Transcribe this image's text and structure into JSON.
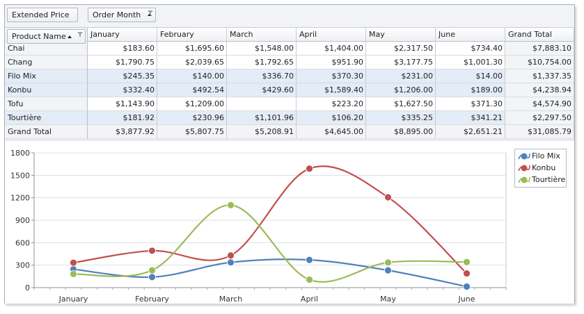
{
  "header": {
    "data_field": "Extended Price",
    "column_field": "Order Month",
    "row_field": "Product Name"
  },
  "columns": [
    "January",
    "February",
    "March",
    "April",
    "May",
    "June",
    "Grand Total"
  ],
  "rows": [
    {
      "name": "Chai",
      "values": [
        "$183.60",
        "$1,695.60",
        "$1,548.00",
        "$1,404.00",
        "$2,317.50",
        "$734.40",
        "$7,883.10"
      ],
      "highlighted": false
    },
    {
      "name": "Chang",
      "values": [
        "$1,790.75",
        "$2,039.65",
        "$1,792.65",
        "$951.90",
        "$3,177.75",
        "$1,001.30",
        "$10,754.00"
      ],
      "highlighted": false
    },
    {
      "name": "Filo Mix",
      "values": [
        "$245.35",
        "$140.00",
        "$336.70",
        "$370.30",
        "$231.00",
        "$14.00",
        "$1,337.35"
      ],
      "highlighted": true
    },
    {
      "name": "Konbu",
      "values": [
        "$332.40",
        "$492.54",
        "$429.60",
        "$1,589.40",
        "$1,206.00",
        "$189.00",
        "$4,238.94"
      ],
      "highlighted": true
    },
    {
      "name": "Tofu",
      "values": [
        "$1,143.90",
        "$1,209.00",
        "",
        "$223.20",
        "$1,627.50",
        "$371.30",
        "$4,574.90"
      ],
      "highlighted": false
    },
    {
      "name": "Tourtière",
      "values": [
        "$181.92",
        "$230.96",
        "$1,101.96",
        "$106.20",
        "$335.25",
        "$341.21",
        "$2,297.50"
      ],
      "highlighted": true
    }
  ],
  "grand_total": {
    "name": "Grand Total",
    "values": [
      "$3,877.92",
      "$5,807.75",
      "$5,208.91",
      "$4,645.00",
      "$8,895.00",
      "$2,651.21",
      "$31,085.79"
    ]
  },
  "chart_data": {
    "type": "line",
    "categories": [
      "January",
      "February",
      "March",
      "April",
      "May",
      "June"
    ],
    "series": [
      {
        "name": "Filo Mix",
        "color": "#4f81bd",
        "values": [
          245.35,
          140.0,
          336.7,
          370.3,
          231.0,
          14.0
        ]
      },
      {
        "name": "Konbu",
        "color": "#c0504d",
        "values": [
          332.4,
          492.54,
          429.6,
          1589.4,
          1206.0,
          189.0
        ]
      },
      {
        "name": "Tourtière",
        "color": "#9bbb59",
        "values": [
          181.92,
          230.96,
          1101.96,
          106.2,
          335.25,
          341.21
        ]
      }
    ],
    "yticks": [
      0,
      300,
      600,
      900,
      1200,
      1500,
      1800
    ],
    "ylim": [
      0,
      1800
    ],
    "grid": true,
    "legend": "top-right",
    "smooth": true
  }
}
